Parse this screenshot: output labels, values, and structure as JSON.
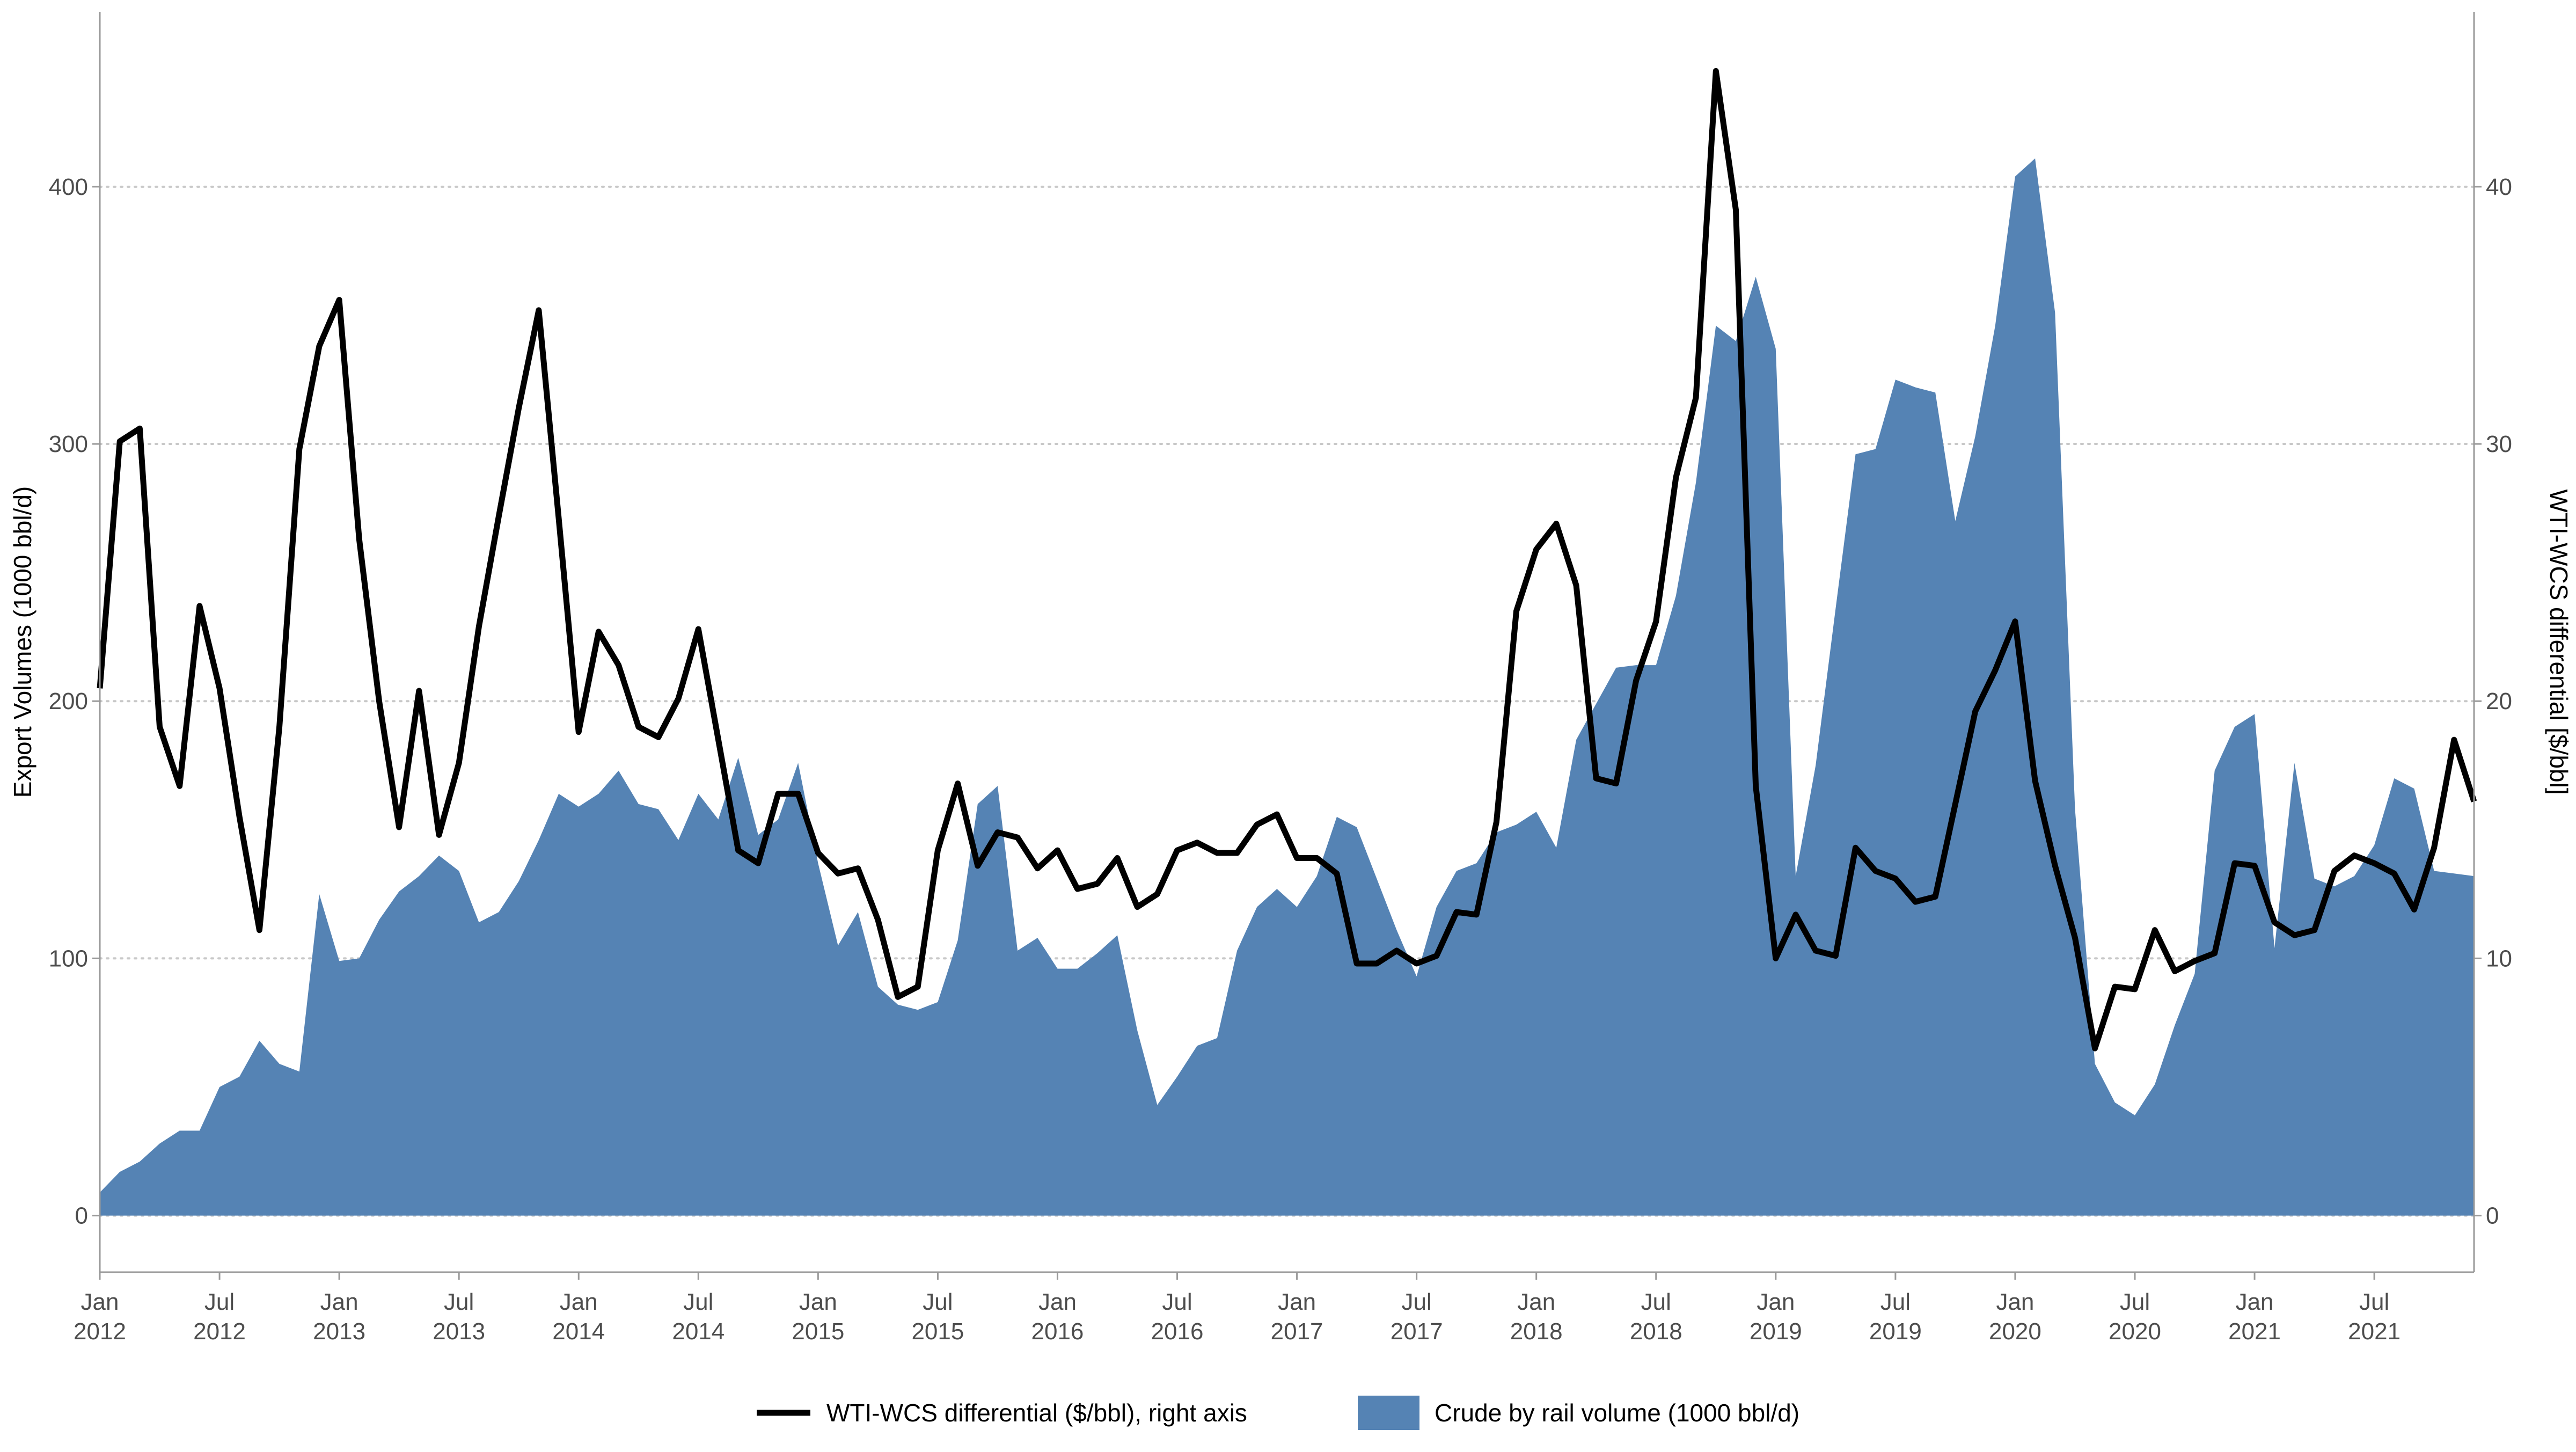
{
  "chart_data": {
    "type": "area+line",
    "title": "",
    "ylabel_left": "Export Volumes (1000 bbl/d)",
    "ylabel_right": "WTI-WCS differential [$/bbl]",
    "xlabel": "",
    "ylim_left": [
      -22,
      468
    ],
    "ylim_right": [
      -2.2,
      46.8
    ],
    "left_ticks": [
      "0",
      "100",
      "200",
      "300",
      "400"
    ],
    "left_tick_values": [
      0,
      100,
      200,
      300,
      400
    ],
    "right_ticks": [
      "0",
      "10",
      "20",
      "30",
      "40"
    ],
    "right_tick_values": [
      0,
      10,
      20,
      30,
      40
    ],
    "grid": "horizontal dotted at left-axis major ticks",
    "x_start": "2012-01",
    "x_end": "2021-12",
    "x_ticks": [
      {
        "month": "2012-01",
        "line1": "Jan",
        "line2": "2012"
      },
      {
        "month": "2012-07",
        "line1": "Jul",
        "line2": "2012"
      },
      {
        "month": "2013-01",
        "line1": "Jan",
        "line2": "2013"
      },
      {
        "month": "2013-07",
        "line1": "Jul",
        "line2": "2013"
      },
      {
        "month": "2014-01",
        "line1": "Jan",
        "line2": "2014"
      },
      {
        "month": "2014-07",
        "line1": "Jul",
        "line2": "2014"
      },
      {
        "month": "2015-01",
        "line1": "Jan",
        "line2": "2015"
      },
      {
        "month": "2015-07",
        "line1": "Jul",
        "line2": "2015"
      },
      {
        "month": "2016-01",
        "line1": "Jan",
        "line2": "2016"
      },
      {
        "month": "2016-07",
        "line1": "Jul",
        "line2": "2016"
      },
      {
        "month": "2017-01",
        "line1": "Jan",
        "line2": "2017"
      },
      {
        "month": "2017-07",
        "line1": "Jul",
        "line2": "2017"
      },
      {
        "month": "2018-01",
        "line1": "Jan",
        "line2": "2018"
      },
      {
        "month": "2018-07",
        "line1": "Jul",
        "line2": "2018"
      },
      {
        "month": "2019-01",
        "line1": "Jan",
        "line2": "2019"
      },
      {
        "month": "2019-07",
        "line1": "Jul",
        "line2": "2019"
      },
      {
        "month": "2020-01",
        "line1": "Jan",
        "line2": "2020"
      },
      {
        "month": "2020-07",
        "line1": "Jul",
        "line2": "2020"
      },
      {
        "month": "2021-01",
        "line1": "Jan",
        "line2": "2021"
      },
      {
        "month": "2021-07",
        "line1": "Jul",
        "line2": "2021"
      }
    ],
    "legend_position": "bottom",
    "series": [
      {
        "name": "Crude by rail volume (1000 bbl/d)",
        "type": "area",
        "axis": "left",
        "color": "#5583b4",
        "start": "2012-01",
        "values": [
          9,
          17,
          21,
          28,
          33,
          33,
          50,
          54,
          68,
          59,
          56,
          125,
          99,
          100,
          115,
          126,
          132,
          140,
          134,
          114,
          118,
          130,
          146,
          164,
          159,
          164,
          173,
          160,
          158,
          146,
          164,
          154,
          178,
          148,
          154,
          176,
          137,
          105,
          118,
          89,
          82,
          80,
          83,
          107,
          160,
          167,
          103,
          108,
          96,
          96,
          102,
          109,
          72,
          43,
          54,
          66,
          69,
          103,
          120,
          127,
          120,
          132,
          155,
          151,
          131,
          111,
          93,
          120,
          134,
          137,
          149,
          152,
          157,
          143,
          185,
          199,
          213,
          214,
          214,
          241,
          285,
          346,
          340,
          365,
          337,
          132,
          175,
          236,
          296,
          298,
          325,
          322,
          320,
          270,
          303,
          346,
          404,
          411,
          351,
          158,
          59,
          44,
          39,
          51,
          74,
          94,
          173,
          190,
          195,
          104,
          176,
          131,
          128,
          132,
          144,
          170,
          166,
          134,
          133,
          132
        ]
      },
      {
        "name": "WTI-WCS differential ($/bbl), right axis",
        "type": "line",
        "axis": "right",
        "color": "#000000",
        "start": "2012-01",
        "values": [
          20.5,
          30.1,
          30.6,
          19.0,
          16.7,
          23.7,
          20.5,
          15.5,
          11.1,
          19.0,
          29.8,
          33.8,
          35.6,
          26.3,
          20.0,
          15.1,
          20.4,
          14.8,
          17.6,
          22.9,
          27.2,
          31.4,
          35.2,
          27.1,
          18.8,
          22.7,
          21.4,
          19.0,
          18.6,
          20.1,
          22.8,
          18.5,
          14.2,
          13.7,
          16.4,
          16.4,
          14.1,
          13.3,
          13.5,
          11.5,
          8.5,
          8.9,
          14.2,
          16.8,
          13.6,
          14.9,
          14.7,
          13.5,
          14.2,
          12.7,
          12.9,
          13.9,
          12.0,
          12.5,
          14.2,
          14.5,
          14.1,
          14.1,
          15.2,
          15.6,
          13.9,
          13.9,
          13.3,
          9.8,
          9.8,
          10.3,
          9.8,
          10.1,
          11.8,
          11.7,
          15.3,
          23.5,
          25.9,
          26.9,
          24.5,
          17.0,
          16.8,
          20.8,
          23.1,
          28.7,
          31.8,
          44.5,
          39.1,
          16.7,
          10.0,
          11.7,
          10.3,
          10.1,
          14.3,
          13.4,
          13.1,
          12.2,
          12.4,
          16.0,
          19.6,
          21.2,
          23.1,
          16.9,
          13.6,
          10.8,
          6.5,
          8.9,
          8.8,
          11.1,
          9.5,
          9.9,
          10.2,
          13.7,
          13.6,
          11.4,
          10.9,
          11.1,
          13.4,
          14.0,
          13.7,
          13.3,
          11.9,
          14.3,
          18.5,
          16.1
        ]
      }
    ]
  }
}
